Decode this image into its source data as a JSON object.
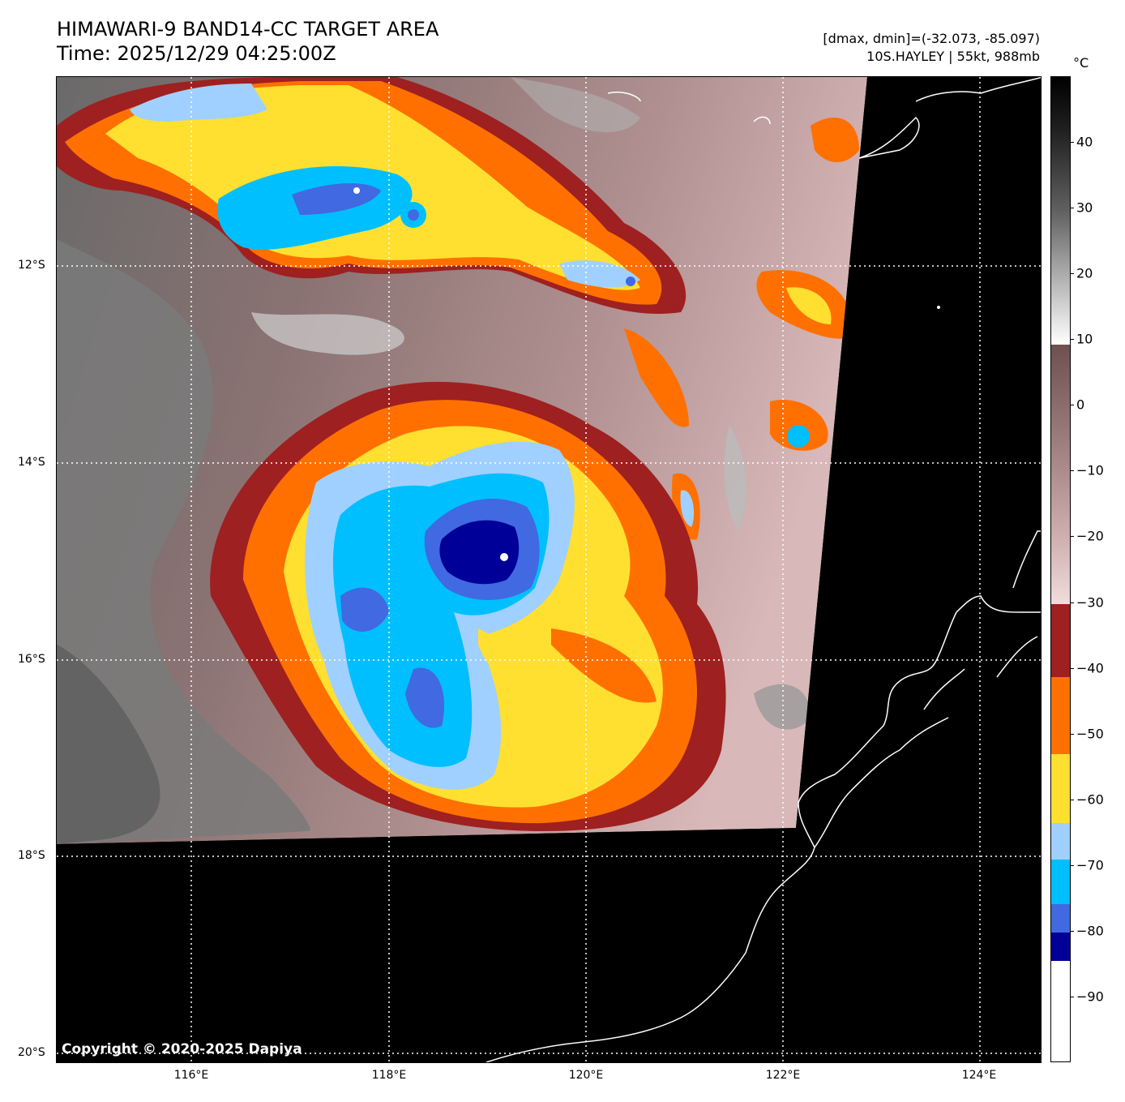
{
  "header": {
    "title": "HIMAWARI-9 BAND14-CC TARGET AREA",
    "time": "Time: 2025/12/29 04:25:00Z",
    "range_info": "[dmax, dmin]=(-32.073, -85.097)",
    "storm_info": "10S.HAYLEY | 55kt, 988mb"
  },
  "map": {
    "copyright": "Copyright © 2020-2025 Dapiya",
    "lat_labels": [
      "12°S",
      "14°S",
      "16°S",
      "18°S",
      "20°S"
    ],
    "lon_labels": [
      "116°E",
      "118°E",
      "120°E",
      "122°E",
      "124°E"
    ],
    "lon_range": [
      114.7,
      124.6
    ],
    "lat_range": [
      -10.1,
      -20.0
    ]
  },
  "colorbar": {
    "unit": "°C",
    "ticks": [
      "40",
      "30",
      "20",
      "10",
      "0",
      "−10",
      "−20",
      "−30",
      "−40",
      "−50",
      "−60",
      "−70",
      "−80",
      "−90"
    ],
    "tick_values": [
      40,
      30,
      20,
      10,
      0,
      -10,
      -20,
      -30,
      -40,
      -50,
      -60,
      -70,
      -80,
      -90
    ],
    "range": [
      -100,
      50
    ],
    "colors": {
      "white_cold": "#ffffff",
      "navy": "#000099",
      "royal_blue": "#4169e1",
      "deep_sky_blue": "#00bfff",
      "light_sky_blue": "#a0d0ff",
      "yellow": "#ffe030",
      "orange": "#ff7000",
      "dark_red": "#9e2020",
      "pink_gray": "#e8c8c8",
      "brown_gray": "#7a5a5a",
      "white_warm": "#ffffff",
      "black": "#000000"
    }
  }
}
